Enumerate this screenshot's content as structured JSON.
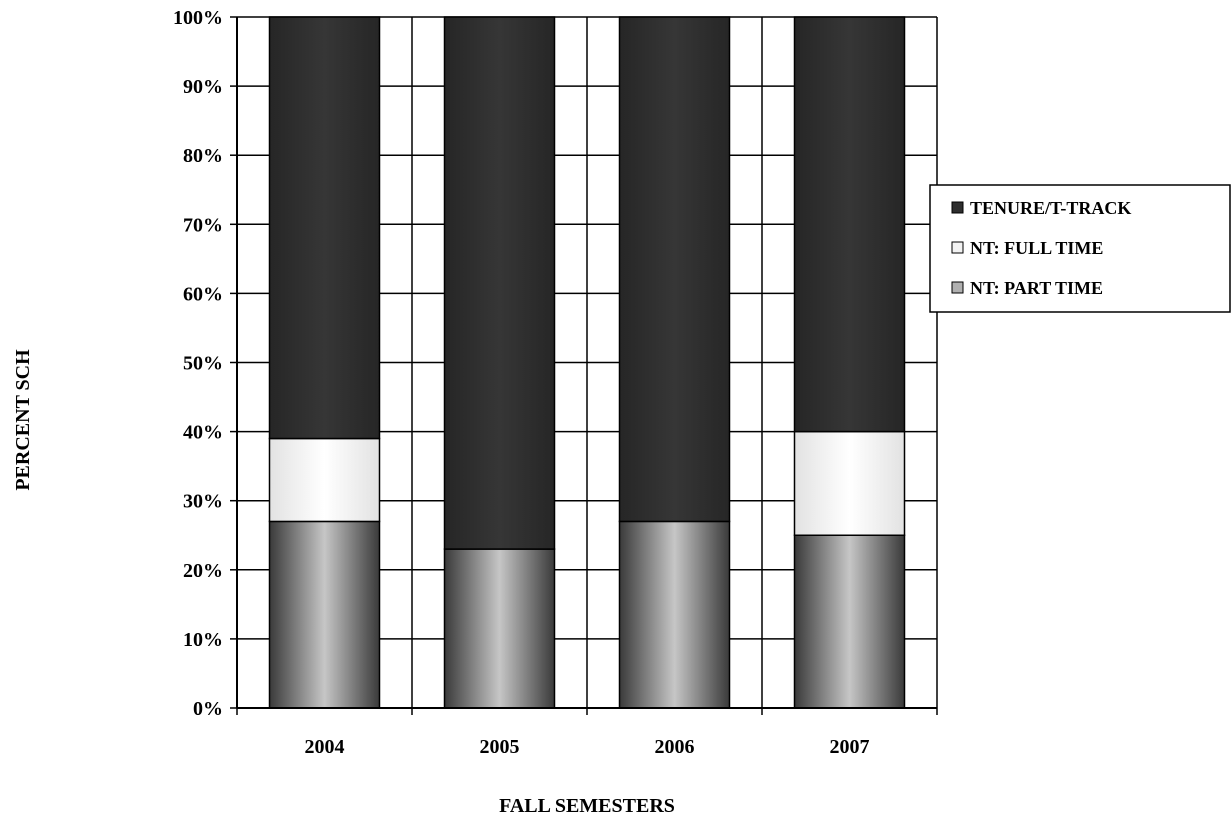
{
  "chart_data": {
    "type": "bar",
    "stacked": true,
    "xlabel": "FALL SEMESTERS",
    "ylabel": "PERCENT SCH",
    "ylim": [
      0,
      100
    ],
    "yticks": [
      "0%",
      "10%",
      "20%",
      "30%",
      "40%",
      "50%",
      "60%",
      "70%",
      "80%",
      "90%",
      "100%"
    ],
    "categories": [
      "2004",
      "2005",
      "2006",
      "2007"
    ],
    "series": [
      {
        "name": "NT: PART TIME",
        "color": "#b0b0b0",
        "values": [
          27,
          23,
          27,
          25
        ]
      },
      {
        "name": "NT: FULL TIME",
        "color": "#f2f2f2",
        "values": [
          12,
          0,
          0,
          15
        ]
      },
      {
        "name": "TENURE/T-TRACK",
        "color": "#2e2e2e",
        "values": [
          61,
          77,
          73,
          60
        ]
      }
    ],
    "legend_order": [
      "TENURE/T-TRACK",
      "NT: FULL TIME",
      "NT: PART TIME"
    ],
    "legend_position": "right",
    "grid": true
  }
}
